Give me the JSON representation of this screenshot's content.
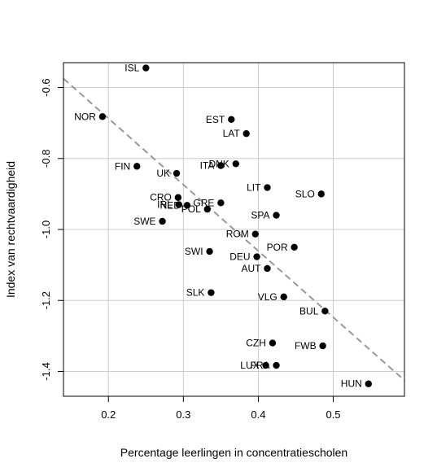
{
  "chart_data": {
    "type": "scatter",
    "title": "",
    "xlabel": "Percentage leerlingen in concentratiescholen",
    "ylabel": "Index van rechtvaardigheid",
    "xlim": [
      0.14,
      0.595
    ],
    "ylim": [
      -1.47,
      -0.53
    ],
    "xticks": [
      0.2,
      0.3,
      0.4,
      0.5
    ],
    "xtick_labels": [
      "0.2",
      "0.3",
      "0.4",
      "0.5"
    ],
    "yticks": [
      -0.6,
      -0.8,
      -1.0,
      -1.2,
      -1.4
    ],
    "ytick_labels": [
      "-0.6",
      "-0.8",
      "-1.0",
      "-1.2",
      "-1.4"
    ],
    "grid": true,
    "colors": {
      "points": "#000000",
      "grid": "#cccccc",
      "trendline": "#999999",
      "frame": "#000000"
    },
    "trendline": {
      "style": "dashed",
      "x": [
        0.14,
        0.595
      ],
      "y": [
        -0.575,
        -1.425
      ]
    },
    "points": [
      {
        "label": "ISL",
        "x": 0.25,
        "y": -0.545,
        "label_side": "left"
      },
      {
        "label": "NOR",
        "x": 0.192,
        "y": -0.682,
        "label_side": "left"
      },
      {
        "label": "EST",
        "x": 0.364,
        "y": -0.69,
        "label_side": "left"
      },
      {
        "label": "LAT",
        "x": 0.384,
        "y": -0.73,
        "label_side": "left"
      },
      {
        "label": "FIN",
        "x": 0.238,
        "y": -0.822,
        "label_side": "left"
      },
      {
        "label": "DNK",
        "x": 0.37,
        "y": -0.815,
        "label_side": "left"
      },
      {
        "label": "ITA",
        "x": 0.35,
        "y": -0.82,
        "label_side": "left"
      },
      {
        "label": "UK",
        "x": 0.291,
        "y": -0.842,
        "label_side": "left"
      },
      {
        "label": "LIT",
        "x": 0.412,
        "y": -0.882,
        "label_side": "left"
      },
      {
        "label": "SLO",
        "x": 0.484,
        "y": -0.9,
        "label_side": "left"
      },
      {
        "label": "CRO",
        "x": 0.293,
        "y": -0.91,
        "label_side": "left"
      },
      {
        "label": "GRE",
        "x": 0.35,
        "y": -0.925,
        "label_side": "left"
      },
      {
        "label": "IRL",
        "x": 0.294,
        "y": -0.93,
        "label_side": "left"
      },
      {
        "label": "NED",
        "x": 0.305,
        "y": -0.932,
        "label_side": "left"
      },
      {
        "label": "POL",
        "x": 0.332,
        "y": -0.943,
        "label_side": "left"
      },
      {
        "label": "SPA",
        "x": 0.424,
        "y": -0.96,
        "label_side": "left"
      },
      {
        "label": "SWE",
        "x": 0.272,
        "y": -0.977,
        "label_side": "left"
      },
      {
        "label": "ROM",
        "x": 0.396,
        "y": -1.013,
        "label_side": "left"
      },
      {
        "label": "POR",
        "x": 0.448,
        "y": -1.05,
        "label_side": "left"
      },
      {
        "label": "SWI",
        "x": 0.335,
        "y": -1.062,
        "label_side": "left"
      },
      {
        "label": "DEU",
        "x": 0.398,
        "y": -1.077,
        "label_side": "left"
      },
      {
        "label": "AUT",
        "x": 0.412,
        "y": -1.11,
        "label_side": "left"
      },
      {
        "label": "SLK",
        "x": 0.337,
        "y": -1.178,
        "label_side": "left"
      },
      {
        "label": "VLG",
        "x": 0.434,
        "y": -1.19,
        "label_side": "left"
      },
      {
        "label": "BUL",
        "x": 0.489,
        "y": -1.23,
        "label_side": "left"
      },
      {
        "label": "CZH",
        "x": 0.419,
        "y": -1.32,
        "label_side": "left"
      },
      {
        "label": "FWB",
        "x": 0.486,
        "y": -1.328,
        "label_side": "left"
      },
      {
        "label": "LUX",
        "x": 0.41,
        "y": -1.383,
        "label_side": "left"
      },
      {
        "label": "FRA",
        "x": 0.424,
        "y": -1.383,
        "label_side": "left"
      },
      {
        "label": "HUN",
        "x": 0.547,
        "y": -1.435,
        "label_side": "left"
      }
    ]
  }
}
